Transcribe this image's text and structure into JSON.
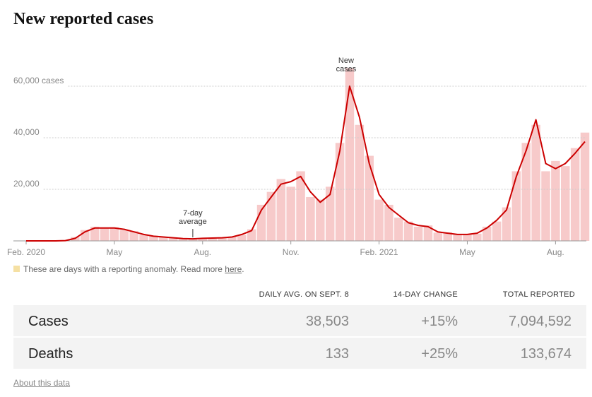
{
  "chart_data": {
    "type": "bar-line",
    "title": "New reported cases",
    "categories": [
      "Feb. 2020",
      null,
      null,
      null,
      null,
      null,
      null,
      null,
      null,
      "May",
      null,
      null,
      null,
      null,
      null,
      null,
      null,
      null,
      "Aug.",
      null,
      null,
      null,
      null,
      null,
      null,
      null,
      null,
      "Nov.",
      null,
      null,
      null,
      null,
      null,
      null,
      null,
      null,
      "Feb. 2021",
      null,
      null,
      null,
      null,
      null,
      null,
      null,
      null,
      "May",
      null,
      null,
      null,
      null,
      null,
      null,
      null,
      null,
      "Aug.",
      null,
      null,
      null
    ],
    "series": [
      {
        "name": "New cases",
        "color": "#f7caca",
        "values": [
          0,
          0,
          0,
          0,
          200,
          1500,
          4200,
          5500,
          4800,
          5300,
          4200,
          3800,
          2300,
          2000,
          1400,
          1300,
          1000,
          700,
          1100,
          1000,
          1300,
          1700,
          2300,
          4500,
          14000,
          19000,
          24000,
          21000,
          27000,
          17000,
          16000,
          21000,
          38000,
          67000,
          45000,
          33000,
          16000,
          14000,
          9000,
          7500,
          5500,
          6000,
          3200,
          3300,
          2400,
          2700,
          2800,
          5500,
          7500,
          13000,
          27000,
          38000,
          45000,
          27000,
          31000,
          29000,
          36000,
          42000
        ]
      },
      {
        "name": "7-day average",
        "color": "#cc0000",
        "values": [
          0,
          0,
          0,
          0,
          100,
          1000,
          3500,
          5000,
          5000,
          5000,
          4500,
          3500,
          2500,
          1800,
          1500,
          1200,
          900,
          800,
          1000,
          1100,
          1200,
          1500,
          2500,
          4000,
          12000,
          17000,
          22000,
          23000,
          25000,
          19000,
          15000,
          18000,
          35000,
          60000,
          48000,
          30000,
          18000,
          13000,
          10000,
          7000,
          6000,
          5500,
          3500,
          3000,
          2500,
          2500,
          3000,
          5000,
          8000,
          12000,
          25000,
          35000,
          47000,
          30000,
          28000,
          30000,
          34000,
          38500
        ]
      }
    ],
    "ylim": [
      0,
      70000
    ],
    "yticks": [
      {
        "value": 20000,
        "label": "20,000"
      },
      {
        "value": 40000,
        "label": "40,000"
      },
      {
        "value": 60000,
        "label": "60,000 cases"
      }
    ],
    "grid": true
  },
  "note": {
    "text": "These are days with a reporting anomaly. Read more",
    "link": "here",
    "end": "."
  },
  "table": {
    "headers": [
      "DAILY AVG. ON SEPT. 8",
      "14-DAY CHANGE",
      "TOTAL REPORTED"
    ],
    "rows": [
      [
        "Cases",
        "38,503",
        "+15%",
        "7,094,592"
      ],
      [
        "Deaths",
        "133",
        "+25%",
        "133,674"
      ]
    ]
  },
  "footer": "About this data"
}
